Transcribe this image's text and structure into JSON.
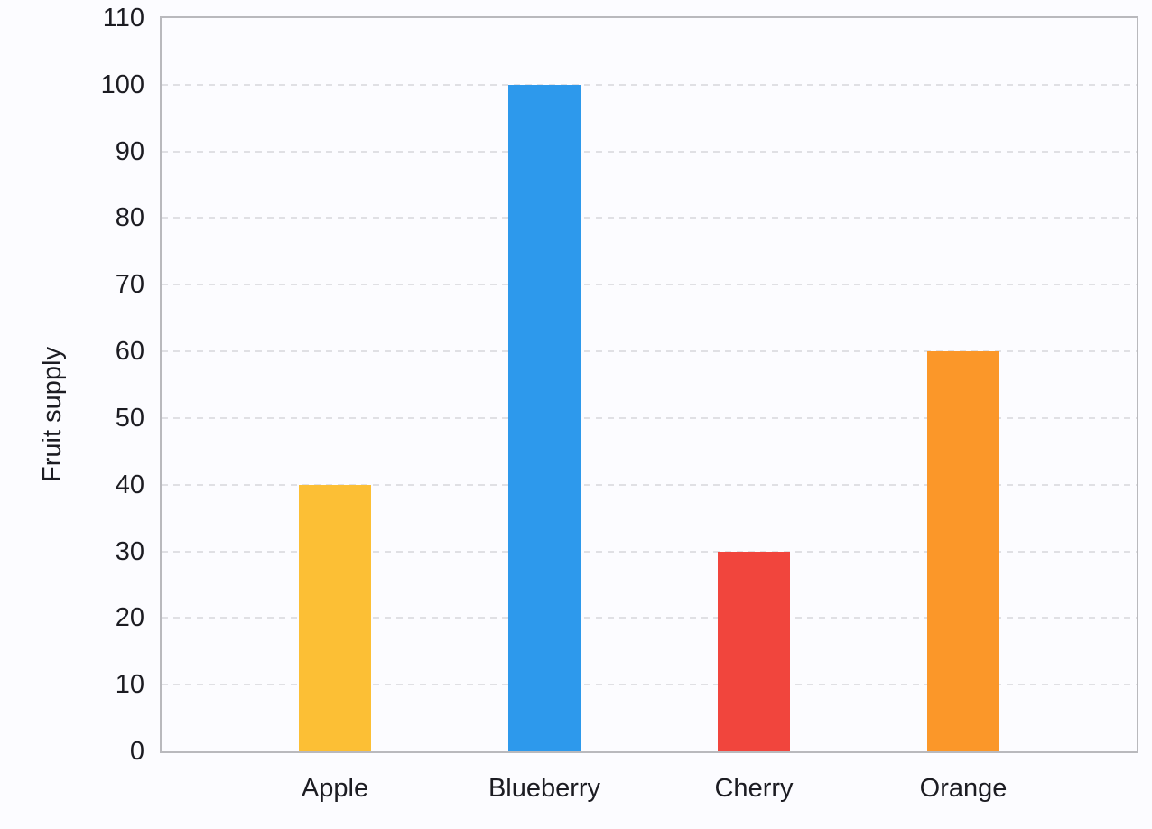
{
  "chart_data": {
    "type": "bar",
    "title": "",
    "xlabel": "",
    "ylabel": "Fruit supply",
    "categories": [
      "Apple",
      "Blueberry",
      "Cherry",
      "Orange"
    ],
    "values": [
      40,
      100,
      30,
      60
    ],
    "bar_colors": [
      "#FCBF35",
      "#2D99EC",
      "#F1453D",
      "#FB9729"
    ],
    "ylim": [
      0,
      110
    ],
    "yticks": [
      0,
      10,
      20,
      30,
      40,
      50,
      60,
      70,
      80,
      90,
      100,
      110
    ],
    "grid": "horizontal-dashed",
    "legend_position": "none"
  },
  "style": {
    "background": "#FCFCFF",
    "axis_border_color": "#B9B9BD",
    "gridline_color": "#E0E0E4",
    "text_color": "#1C1C22"
  }
}
